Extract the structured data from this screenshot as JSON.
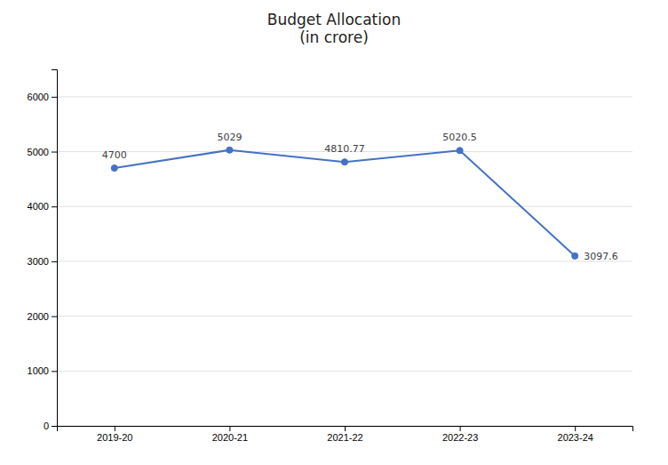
{
  "chart_data": {
    "type": "line",
    "title": "Budget Allocation\n(in crore)",
    "categories": [
      "2019-20",
      "2020-21",
      "2021-22",
      "2022-23",
      "2023-24"
    ],
    "values": [
      4700,
      5029,
      4810.77,
      5020.5,
      3097.6
    ],
    "color": "#4472C4",
    "marker": "circle",
    "ylim": [
      0,
      6500
    ],
    "yticks": [
      0,
      1000,
      2000,
      3000,
      4000,
      5000,
      6000
    ],
    "grid": true,
    "data_labels": true
  }
}
